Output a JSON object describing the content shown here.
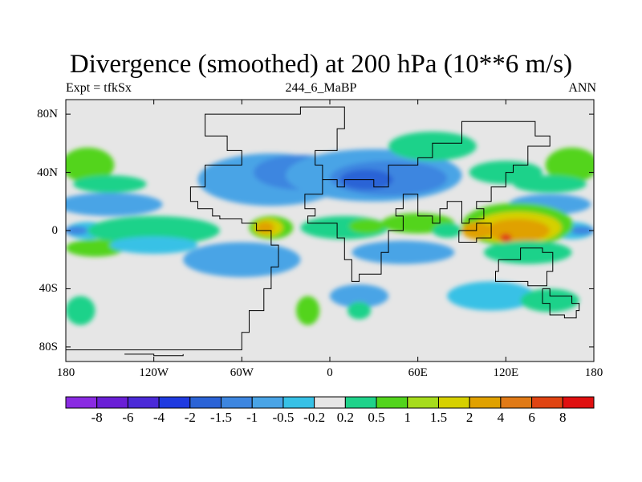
{
  "title": "Divergence (smoothed) at 200 hPa (10**6 m/s)",
  "subtitle_left": "Expt = tfkSx",
  "subtitle_center": "244_6_MaBP",
  "subtitle_right": "ANN",
  "map": {
    "lon_range": [
      -180,
      180
    ],
    "lat_range": [
      -90,
      90
    ],
    "x_ticks": [
      {
        "lon": -180,
        "label": "180"
      },
      {
        "lon": -120,
        "label": "120W"
      },
      {
        "lon": -60,
        "label": "60W"
      },
      {
        "lon": 0,
        "label": "0"
      },
      {
        "lon": 60,
        "label": "60E"
      },
      {
        "lon": 120,
        "label": "120E"
      },
      {
        "lon": 180,
        "label": "180"
      }
    ],
    "y_ticks": [
      {
        "lat": 80,
        "label": "80N"
      },
      {
        "lat": 40,
        "label": "40N"
      },
      {
        "lat": 0,
        "label": "0"
      },
      {
        "lat": -40,
        "label": "40S"
      },
      {
        "lat": -80,
        "label": "80S"
      }
    ]
  },
  "colorbar": {
    "colors": [
      "#8a2be2",
      "#6a1fd6",
      "#4b2ad8",
      "#1f3ae0",
      "#2b63d6",
      "#3d86e0",
      "#49a4e6",
      "#37c1e6",
      "#e6e6e6",
      "#1fd28a",
      "#52d41c",
      "#a6dc1c",
      "#d6d000",
      "#e0a100",
      "#e07a16",
      "#e04412",
      "#e01010"
    ],
    "labels": [
      "-8",
      "-6",
      "-4",
      "-2",
      "-1.5",
      "-1",
      "-0.5",
      "-0.2",
      "0.2",
      "0.5",
      "1",
      "1.5",
      "2",
      "4",
      "6",
      "8"
    ]
  },
  "field_blobs": [
    {
      "lon": -40,
      "lat": 35,
      "rlon": 50,
      "rlat": 18,
      "c": "#49a4e6"
    },
    {
      "lon": -20,
      "lat": 40,
      "rlon": 32,
      "rlat": 12,
      "c": "#3d86e0"
    },
    {
      "lon": 30,
      "lat": 38,
      "rlon": 60,
      "rlat": 18,
      "c": "#49a4e6"
    },
    {
      "lon": 40,
      "lat": 36,
      "rlon": 40,
      "rlat": 12,
      "c": "#3d86e0"
    },
    {
      "lon": 25,
      "lat": 35,
      "rlon": 18,
      "rlat": 7,
      "c": "#2b63d6"
    },
    {
      "lon": -150,
      "lat": 18,
      "rlon": 36,
      "rlat": 8,
      "c": "#49a4e6"
    },
    {
      "lon": 150,
      "lat": 18,
      "rlon": 28,
      "rlat": 7,
      "c": "#49a4e6"
    },
    {
      "lon": -165,
      "lat": 0,
      "rlon": 15,
      "rlat": 6,
      "c": "#37c1e6"
    },
    {
      "lon": -173,
      "lat": 0,
      "rlon": 8,
      "rlat": 3,
      "c": "#3d86e0"
    },
    {
      "lon": 165,
      "lat": 0,
      "rlon": 15,
      "rlat": 6,
      "c": "#37c1e6"
    },
    {
      "lon": 172,
      "lat": 0,
      "rlon": 8,
      "rlat": 3,
      "c": "#3d86e0"
    },
    {
      "lon": -120,
      "lat": 0,
      "rlon": 45,
      "rlat": 10,
      "c": "#1fd28a"
    },
    {
      "lon": -160,
      "lat": -12,
      "rlon": 20,
      "rlat": 6,
      "c": "#52d41c"
    },
    {
      "lon": -120,
      "lat": -10,
      "rlon": 30,
      "rlat": 6,
      "c": "#37c1e6"
    },
    {
      "lon": -60,
      "lat": -20,
      "rlon": 40,
      "rlat": 12,
      "c": "#49a4e6"
    },
    {
      "lon": -40,
      "lat": 2,
      "rlon": 15,
      "rlat": 8,
      "c": "#52d41c"
    },
    {
      "lon": -42,
      "lat": 2,
      "rlon": 10,
      "rlat": 6,
      "c": "#d6d000"
    },
    {
      "lon": -44,
      "lat": 2,
      "rlon": 6,
      "rlat": 4,
      "c": "#e0a100"
    },
    {
      "lon": 10,
      "lat": 2,
      "rlon": 30,
      "rlat": 8,
      "c": "#1fd28a"
    },
    {
      "lon": 25,
      "lat": 3,
      "rlon": 12,
      "rlat": 5,
      "c": "#52d41c"
    },
    {
      "lon": 60,
      "lat": 5,
      "rlon": 25,
      "rlat": 7,
      "c": "#52d41c"
    },
    {
      "lon": 80,
      "lat": 0,
      "rlon": 10,
      "rlat": 5,
      "c": "#1fd28a"
    },
    {
      "lon": 128,
      "lat": 4,
      "rlon": 38,
      "rlat": 15,
      "c": "#52d41c"
    },
    {
      "lon": 128,
      "lat": 2,
      "rlon": 30,
      "rlat": 11,
      "c": "#d6d000"
    },
    {
      "lon": 128,
      "lat": 0,
      "rlon": 22,
      "rlat": 8,
      "c": "#e0a100"
    },
    {
      "lon": 120,
      "lat": -5,
      "rlon": 4,
      "rlat": 3,
      "c": "#e04412"
    },
    {
      "lon": 100,
      "lat": 0,
      "rlon": 10,
      "rlat": 6,
      "c": "#e0a100"
    },
    {
      "lon": 135,
      "lat": -15,
      "rlon": 30,
      "rlat": 8,
      "c": "#1fd28a"
    },
    {
      "lon": 50,
      "lat": -15,
      "rlon": 35,
      "rlat": 8,
      "c": "#49a4e6"
    },
    {
      "lon": 20,
      "lat": -45,
      "rlon": 20,
      "rlat": 8,
      "c": "#49a4e6"
    },
    {
      "lon": 110,
      "lat": -45,
      "rlon": 30,
      "rlat": 10,
      "c": "#37c1e6"
    },
    {
      "lon": 150,
      "lat": -48,
      "rlon": 20,
      "rlat": 8,
      "c": "#1fd28a"
    },
    {
      "lon": -165,
      "lat": 45,
      "rlon": 18,
      "rlat": 12,
      "c": "#52d41c"
    },
    {
      "lon": 165,
      "lat": 45,
      "rlon": 18,
      "rlat": 12,
      "c": "#52d41c"
    },
    {
      "lon": -150,
      "lat": 32,
      "rlon": 25,
      "rlat": 6,
      "c": "#1fd28a"
    },
    {
      "lon": 150,
      "lat": 32,
      "rlon": 25,
      "rlat": 6,
      "c": "#1fd28a"
    },
    {
      "lon": 70,
      "lat": 58,
      "rlon": 30,
      "rlat": 10,
      "c": "#1fd28a"
    },
    {
      "lon": 120,
      "lat": 40,
      "rlon": 25,
      "rlat": 8,
      "c": "#1fd28a"
    },
    {
      "lon": -170,
      "lat": -55,
      "rlon": 10,
      "rlat": 10,
      "c": "#1fd28a"
    },
    {
      "lon": -15,
      "lat": -55,
      "rlon": 8,
      "rlat": 10,
      "c": "#52d41c"
    },
    {
      "lon": 20,
      "lat": -55,
      "rlon": 8,
      "rlat": 6,
      "c": "#1fd28a"
    }
  ],
  "coast_lines": [
    [
      [
        -180,
        -82
      ],
      [
        -65,
        -82
      ],
      [
        -60,
        -70
      ],
      [
        -55,
        -55
      ],
      [
        -45,
        -40
      ],
      [
        -40,
        -25
      ],
      [
        -35,
        -10
      ],
      [
        -40,
        0
      ],
      [
        -50,
        5
      ],
      [
        -60,
        8
      ],
      [
        -75,
        10
      ],
      [
        -80,
        15
      ],
      [
        -90,
        20
      ],
      [
        -95,
        30
      ],
      [
        -85,
        45
      ],
      [
        -60,
        55
      ],
      [
        -70,
        65
      ],
      [
        -85,
        80
      ],
      [
        -20,
        85
      ],
      [
        10,
        70
      ],
      [
        5,
        55
      ],
      [
        -10,
        45
      ],
      [
        -5,
        35
      ],
      [
        5,
        30
      ],
      [
        10,
        35
      ],
      [
        30,
        30
      ],
      [
        40,
        45
      ],
      [
        60,
        50
      ],
      [
        70,
        60
      ],
      [
        90,
        75
      ],
      [
        120,
        75
      ],
      [
        140,
        65
      ],
      [
        150,
        58
      ],
      [
        135,
        45
      ],
      [
        125,
        40
      ],
      [
        120,
        30
      ],
      [
        110,
        20
      ],
      [
        100,
        15
      ],
      [
        105,
        8
      ],
      [
        95,
        5
      ],
      [
        90,
        20
      ],
      [
        80,
        15
      ],
      [
        75,
        5
      ],
      [
        70,
        10
      ],
      [
        60,
        25
      ],
      [
        50,
        15
      ],
      [
        45,
        10
      ],
      [
        50,
        0
      ],
      [
        40,
        -15
      ],
      [
        35,
        -30
      ],
      [
        20,
        -35
      ],
      [
        15,
        -20
      ],
      [
        10,
        -5
      ],
      [
        5,
        5
      ],
      [
        -15,
        10
      ],
      [
        -10,
        15
      ],
      [
        -17,
        25
      ],
      [
        -5,
        35
      ]
    ],
    [
      [
        115,
        -20
      ],
      [
        130,
        -12
      ],
      [
        145,
        -15
      ],
      [
        152,
        -28
      ],
      [
        148,
        -38
      ],
      [
        135,
        -35
      ],
      [
        120,
        -35
      ],
      [
        113,
        -28
      ],
      [
        115,
        -20
      ]
    ],
    [
      [
        88,
        0
      ],
      [
        100,
        5
      ],
      [
        110,
        -5
      ],
      [
        100,
        -8
      ],
      [
        88,
        0
      ]
    ],
    [
      [
        145,
        -40
      ],
      [
        150,
        -45
      ],
      [
        165,
        -50
      ],
      [
        170,
        -55
      ],
      [
        168,
        -60
      ],
      [
        160,
        -58
      ],
      [
        150,
        -50
      ],
      [
        145,
        -40
      ]
    ],
    [
      [
        -140,
        -85
      ],
      [
        -120,
        -86
      ],
      [
        -100,
        -85
      ]
    ]
  ]
}
